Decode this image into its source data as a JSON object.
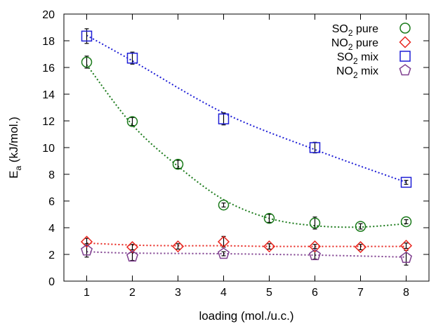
{
  "chart_data": {
    "type": "scatter",
    "title": "",
    "xlabel": "loading (mol./u.c.)",
    "ylabel": {
      "main": "E",
      "sub": "a",
      "rest": " (kJ/mol.)"
    },
    "xlim": [
      0.5,
      8.5
    ],
    "ylim": [
      0,
      20
    ],
    "xticks": [
      "1",
      "2",
      "3",
      "4",
      "5",
      "6",
      "7",
      "8"
    ],
    "yticks": [
      "0",
      "2",
      "4",
      "6",
      "8",
      "10",
      "12",
      "14",
      "16",
      "18",
      "20"
    ],
    "grid": false,
    "legend_position": "top-right",
    "series": [
      {
        "name": {
          "pre": "SO",
          "sub": "2",
          "post": " pure"
        },
        "marker": "circle",
        "color": "#1a7a1a",
        "x": [
          1,
          2,
          3,
          4,
          5,
          6,
          7,
          8
        ],
        "y": [
          16.4,
          11.95,
          8.75,
          5.7,
          4.7,
          4.35,
          4.1,
          4.45
        ],
        "err": [
          0.45,
          0.3,
          0.3,
          0.15,
          0.3,
          0.45,
          0.2,
          0.15
        ],
        "fit_y": [
          16.2,
          11.7,
          8.6,
          6.1,
          4.7,
          4.15,
          4.05,
          4.3
        ]
      },
      {
        "name": {
          "pre": "NO",
          "sub": "2",
          "post": " pure"
        },
        "marker": "diamond",
        "color": "#e8261f",
        "x": [
          1,
          2,
          3,
          4,
          5,
          6,
          7,
          8
        ],
        "y": [
          2.95,
          2.55,
          2.6,
          2.95,
          2.6,
          2.6,
          2.55,
          2.65
        ],
        "err": [
          0.25,
          0.2,
          0.2,
          0.4,
          0.2,
          0.15,
          0.2,
          0.2
        ],
        "fit_y": [
          2.85,
          2.7,
          2.65,
          2.65,
          2.6,
          2.6,
          2.6,
          2.6
        ]
      },
      {
        "name": {
          "pre": "SO",
          "sub": "2",
          "post": " mix"
        },
        "marker": "square",
        "color": "#1f1fd6",
        "x": [
          1,
          2,
          4,
          6,
          8
        ],
        "y": [
          18.35,
          16.7,
          12.15,
          10.0,
          7.4
        ],
        "err": [
          0.55,
          0.45,
          0.45,
          0.4,
          0.15
        ],
        "fit_y": [
          18.4,
          16.5,
          12.6,
          9.85,
          7.4
        ]
      },
      {
        "name": {
          "pre": "NO",
          "sub": "2",
          "post": " mix"
        },
        "marker": "pentagon",
        "color": "#7f3f8f",
        "x": [
          1,
          2,
          4,
          6,
          8
        ],
        "y": [
          2.3,
          1.85,
          2.05,
          1.95,
          1.75
        ],
        "err": [
          0.5,
          0.3,
          0.15,
          0.3,
          0.55
        ],
        "fit_y": [
          2.2,
          2.1,
          2.05,
          1.95,
          1.8
        ]
      }
    ]
  }
}
